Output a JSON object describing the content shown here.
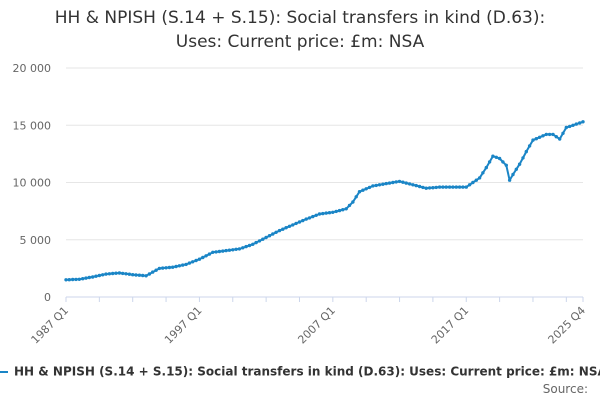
{
  "chart_data": {
    "type": "line",
    "title": "HH & NPISH (S.14 + S.15): Social transfers in kind (D.63): Uses: Current price: £m: NSA",
    "title_lines": [
      "HH & NPISH (S.14 + S.15): Social transfers in kind (D.63):",
      "Uses: Current price: £m: NSA"
    ],
    "xlabel": "",
    "ylabel": "",
    "ylim": [
      0,
      20000
    ],
    "y_ticks": [
      0,
      5000,
      10000,
      15000,
      20000
    ],
    "y_tick_labels": [
      "0",
      "5 000",
      "10 000",
      "15 000",
      "20 000"
    ],
    "x_tick_labels": [
      "1987 Q1",
      "1997 Q1",
      "2007 Q1",
      "2017 Q1",
      "2025 Q4"
    ],
    "x_tick_positions": [
      1987.0,
      1997.0,
      2007.0,
      2017.0,
      2025.75
    ],
    "xlim": [
      1987.0,
      2025.75
    ],
    "grid": true,
    "legend_position": "bottom",
    "series": [
      {
        "name": "HH & NPISH (S.14 + S.15): Social transfers in kind (D.63): Uses: Current price: £m: NSA",
        "color": "#1a85c6",
        "x": [
          1987.0,
          1988.0,
          1989.0,
          1990.0,
          1991.0,
          1992.0,
          1993.0,
          1994.0,
          1995.0,
          1996.0,
          1997.0,
          1998.0,
          1999.0,
          2000.0,
          2001.0,
          2002.0,
          2003.0,
          2004.0,
          2005.0,
          2006.0,
          2007.0,
          2008.0,
          2008.5,
          2009.0,
          2010.0,
          2011.0,
          2012.0,
          2013.0,
          2014.0,
          2015.0,
          2016.0,
          2017.0,
          2018.0,
          2018.5,
          2019.0,
          2019.5,
          2020.0,
          2020.25,
          2020.5,
          2021.0,
          2021.5,
          2022.0,
          2023.0,
          2023.5,
          2024.0,
          2024.5,
          2025.0,
          2025.75
        ],
        "y": [
          1500,
          1550,
          1750,
          2000,
          2100,
          1950,
          1850,
          2500,
          2600,
          2850,
          3300,
          3900,
          4050,
          4200,
          4600,
          5200,
          5800,
          6300,
          6800,
          7250,
          7400,
          7700,
          8300,
          9200,
          9700,
          9900,
          10100,
          9800,
          9500,
          9600,
          9600,
          9600,
          10400,
          11300,
          12300,
          12100,
          11500,
          10200,
          10700,
          11600,
          12700,
          13700,
          14200,
          14200,
          13800,
          14800,
          15000,
          15300
        ]
      }
    ]
  },
  "legend": {
    "label": "HH & NPISH (S.14 + S.15): Social transfers in kind (D.63): Uses: Current price: £m: NSA"
  },
  "source_label": "Source:"
}
